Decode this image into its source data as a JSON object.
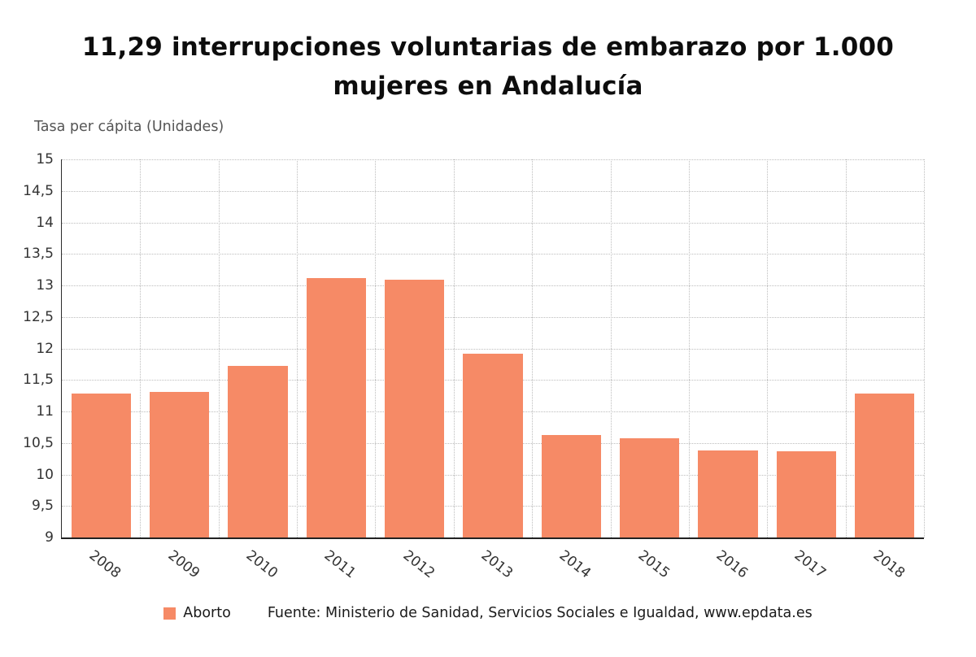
{
  "title": "11,29 interrupciones voluntarias de embarazo por 1.000 mujeres en Andalucía",
  "axis_title": "Tasa per cápita (Unidades)",
  "legend": {
    "label": "Aborto",
    "color": "#F68A66"
  },
  "source": "Fuente: Ministerio de Sanidad, Servicios Sociales e Igualdad, www.epdata.es",
  "chart_data": {
    "type": "bar",
    "title": "11,29 interrupciones voluntarias de embarazo por 1.000 mujeres en Andalucía",
    "ylabel": "Tasa per cápita (Unidades)",
    "xlabel": "",
    "categories": [
      "2008",
      "2009",
      "2010",
      "2011",
      "2012",
      "2013",
      "2014",
      "2015",
      "2016",
      "2017",
      "2018"
    ],
    "series": [
      {
        "name": "Aborto",
        "values": [
          11.29,
          11.31,
          11.72,
          13.12,
          13.09,
          11.91,
          10.62,
          10.58,
          10.38,
          10.37,
          11.29
        ]
      }
    ],
    "ylim": [
      9,
      15
    ],
    "ytick_step": 0.5,
    "ytick_labels": [
      "9",
      "9,5",
      "10",
      "10,5",
      "11",
      "11,5",
      "12",
      "12,5",
      "13",
      "13,5",
      "14",
      "14,5",
      "15"
    ],
    "bar_color": "#F68A66",
    "grid": "dotted horizontal and vertical gridlines",
    "legend_position": "bottom"
  }
}
